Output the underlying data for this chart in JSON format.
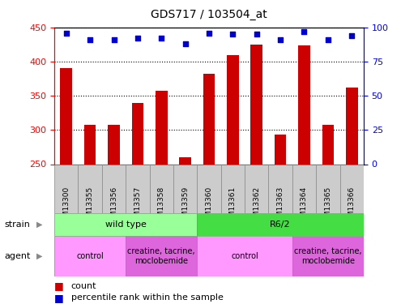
{
  "title": "GDS717 / 103504_at",
  "samples": [
    "GSM13300",
    "GSM13355",
    "GSM13356",
    "GSM13357",
    "GSM13358",
    "GSM13359",
    "GSM13360",
    "GSM13361",
    "GSM13362",
    "GSM13363",
    "GSM13364",
    "GSM13365",
    "GSM13366"
  ],
  "counts": [
    390,
    308,
    307,
    340,
    357,
    260,
    382,
    410,
    425,
    293,
    424,
    308,
    362
  ],
  "percentile_ranks": [
    96,
    91,
    91,
    92,
    92,
    88,
    96,
    95,
    95,
    91,
    97,
    91,
    94
  ],
  "ylim_left": [
    250,
    450
  ],
  "ylim_right": [
    0,
    100
  ],
  "yticks_left": [
    250,
    300,
    350,
    400,
    450
  ],
  "yticks_right": [
    0,
    25,
    50,
    75,
    100
  ],
  "bar_color": "#cc0000",
  "dot_color": "#0000cc",
  "bar_width": 0.5,
  "strain_labels": [
    {
      "label": "wild type",
      "start": 0,
      "end": 6,
      "color": "#99ff99"
    },
    {
      "label": "R6/2",
      "start": 6,
      "end": 13,
      "color": "#44dd44"
    }
  ],
  "agent_labels": [
    {
      "label": "control",
      "start": 0,
      "end": 3,
      "color": "#ff99ff"
    },
    {
      "label": "creatine, tacrine,\nmoclobemide",
      "start": 3,
      "end": 6,
      "color": "#dd66dd"
    },
    {
      "label": "control",
      "start": 6,
      "end": 10,
      "color": "#ff99ff"
    },
    {
      "label": "creatine, tacrine,\nmoclobemide",
      "start": 10,
      "end": 13,
      "color": "#dd66dd"
    }
  ],
  "tick_label_bg": "#cccccc",
  "tick_label_fontsize": 6.5,
  "title_fontsize": 10,
  "legend_fontsize": 8
}
